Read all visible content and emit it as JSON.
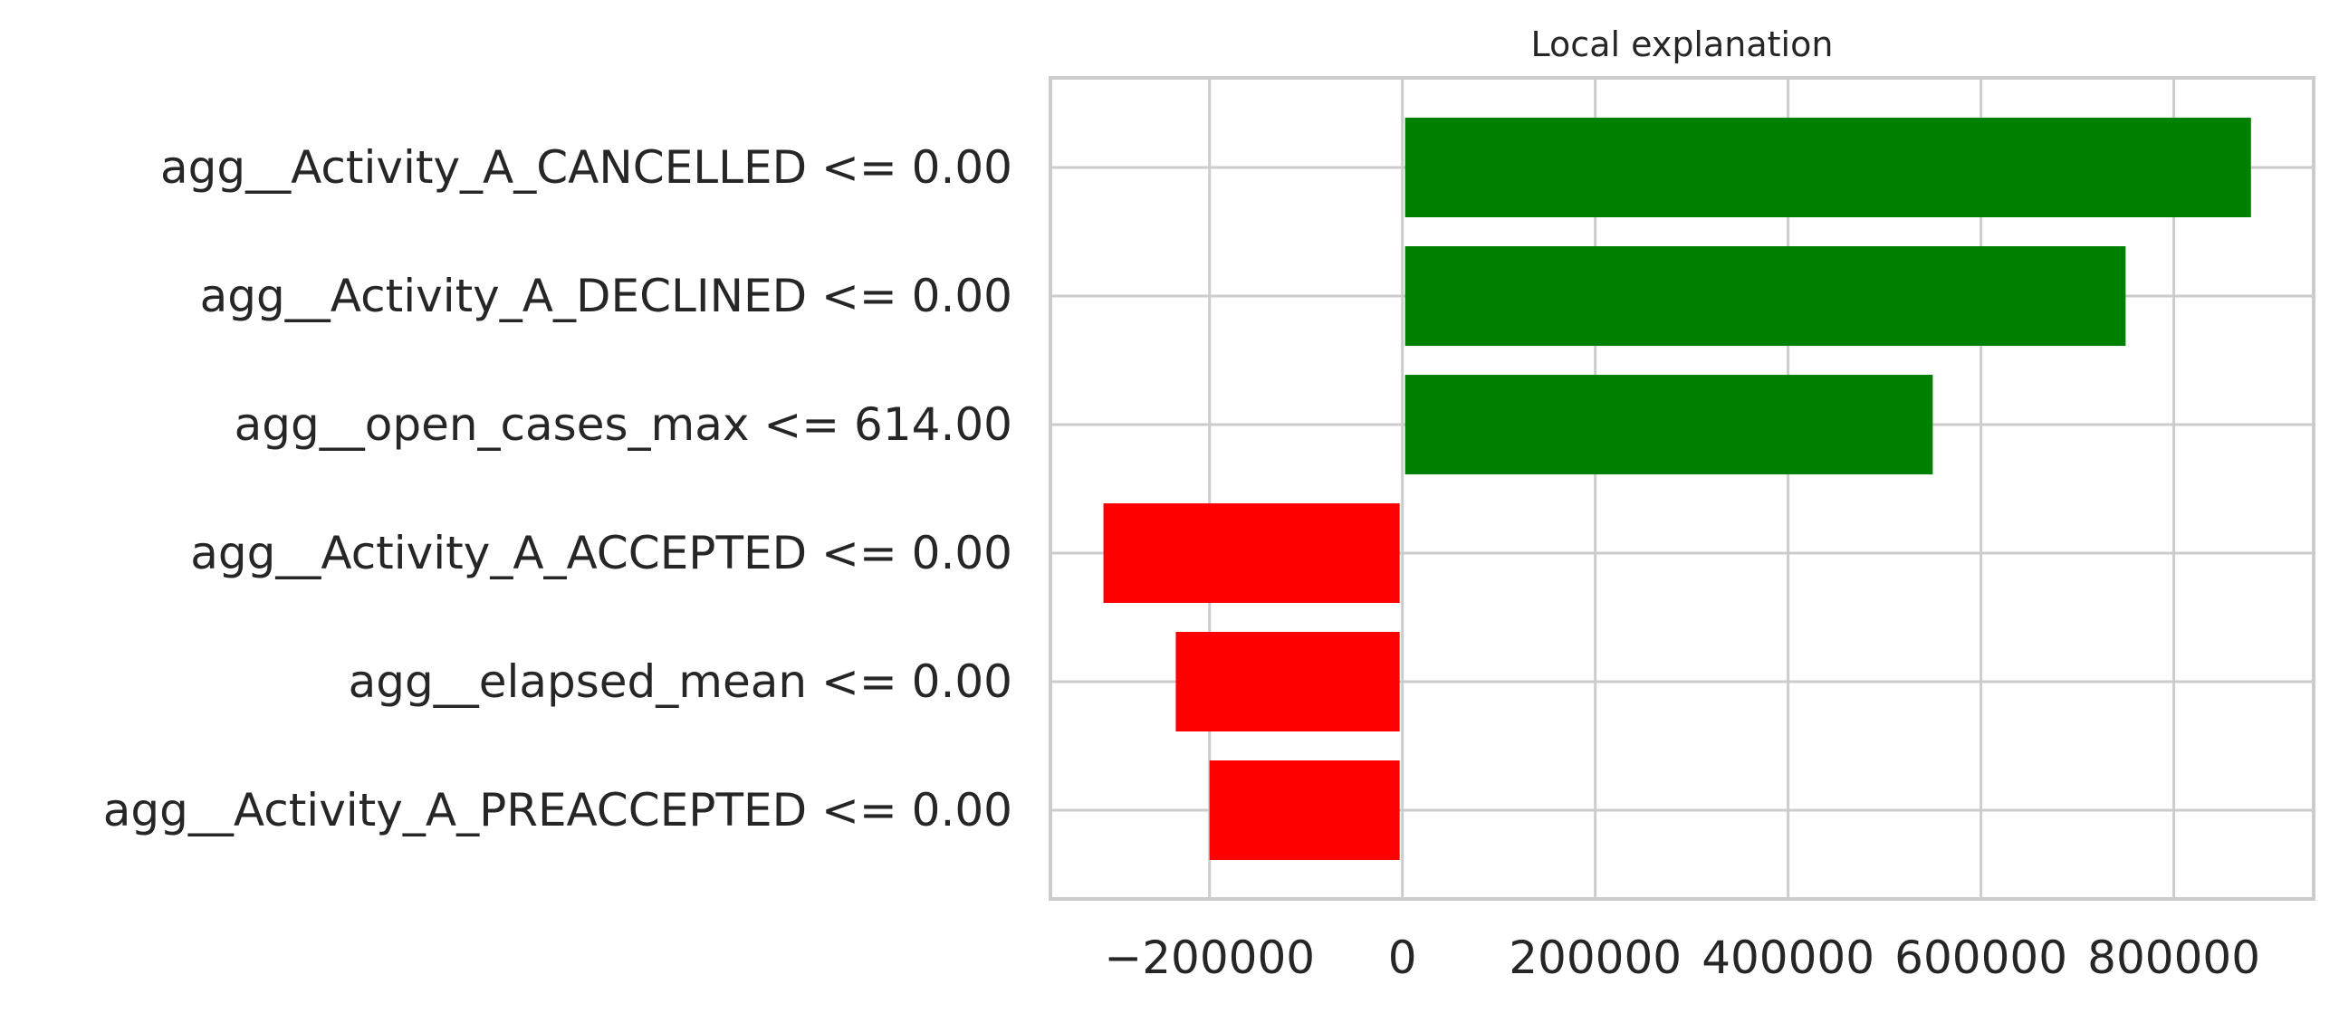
{
  "chart_data": {
    "type": "bar",
    "orientation": "horizontal",
    "title": "Local explanation",
    "xlabel": "",
    "ylabel": "",
    "categories": [
      "agg__Activity_A_CANCELLED <= 0.00",
      "agg__Activity_A_DECLINED <= 0.00",
      "agg__open_cases_max <= 614.00",
      "agg__Activity_A_ACCEPTED <= 0.00",
      "agg__elapsed_mean <= 0.00",
      "agg__Activity_A_PREACCEPTED <= 0.00"
    ],
    "values": [
      880000,
      750000,
      550000,
      -310000,
      -235000,
      -200000
    ],
    "colors": [
      "#008000",
      "#008000",
      "#008000",
      "#ff0000",
      "#ff0000",
      "#ff0000"
    ],
    "xlim": [
      -365000,
      945000
    ],
    "xticks": [
      -200000,
      0,
      200000,
      400000,
      600000,
      800000
    ],
    "xtick_labels": [
      "−200000",
      "0",
      "200000",
      "400000",
      "600000",
      "800000"
    ],
    "grid": true,
    "legend": "none"
  }
}
